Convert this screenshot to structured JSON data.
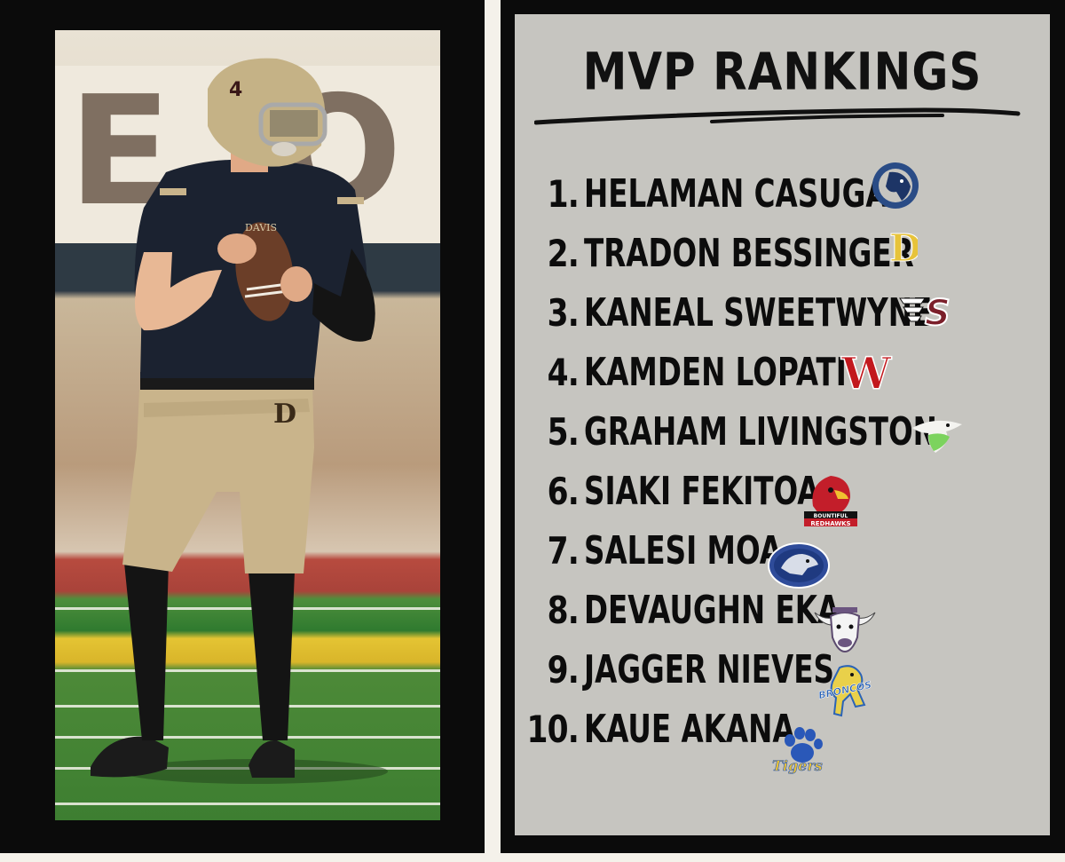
{
  "title": "MVP RANKINGS",
  "photo": {
    "helmet_number": "4",
    "jersey_text": "DAVIS",
    "pants_logo": "D",
    "sign_text": "E  O"
  },
  "rankings": [
    {
      "rank": "1.",
      "name": "HELAMAN CASUGA",
      "logo": "stallion-logo-icon"
    },
    {
      "rank": "2.",
      "name": "TRADON BESSINGER",
      "logo": "davis-d-logo-icon"
    },
    {
      "rank": "3.",
      "name": "KANEAL SWEETWYNE",
      "logo": "winged-s-logo-icon"
    },
    {
      "rank": "4.",
      "name": "KAMDEN LOPATI",
      "logo": "w-logo-icon"
    },
    {
      "rank": "5.",
      "name": "GRAHAM LIVINGSTON",
      "logo": "hawk-logo-icon"
    },
    {
      "rank": "6.",
      "name": "SIAKI FEKITOA",
      "logo": "redhawks-logo-icon",
      "logo_text": "BOUNTIFUL REDHAWKS"
    },
    {
      "rank": "7.",
      "name": "SALESI MOA",
      "logo": "wolf-logo-icon"
    },
    {
      "rank": "8.",
      "name": "DEVAUGHN EKA",
      "logo": "bull-logo-icon"
    },
    {
      "rank": "9.",
      "name": "JAGGER NIEVES",
      "logo": "broncos-logo-icon",
      "logo_text": "BRONCOS"
    },
    {
      "rank": "10.",
      "name": "KAUE AKANA",
      "logo": "tigers-paw-logo-icon",
      "logo_text": "Tigers"
    }
  ],
  "colors": {
    "card_bg": "#c6c5c0",
    "frame": "#0b0b0b",
    "text": "#0c0c0c"
  }
}
